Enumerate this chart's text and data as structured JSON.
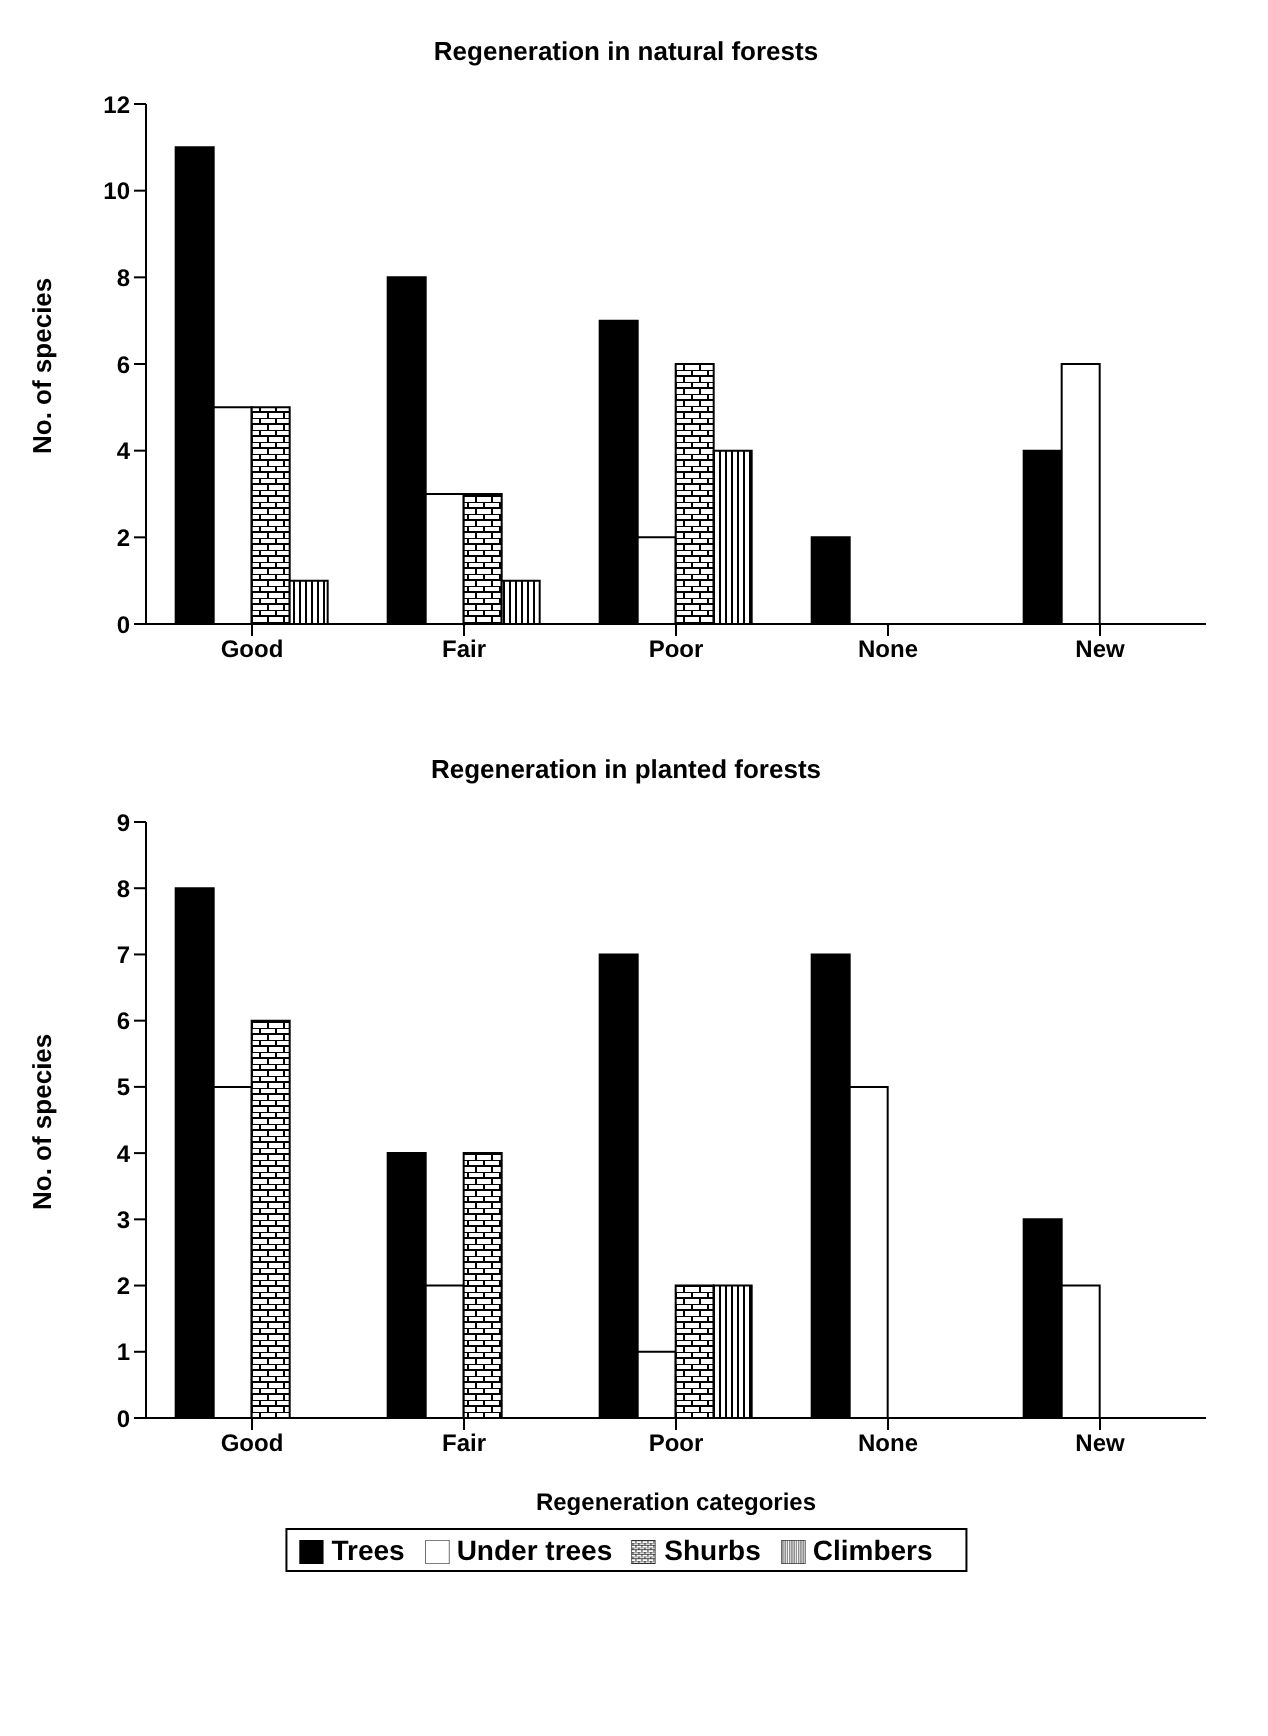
{
  "chart_data": [
    {
      "type": "bar",
      "title": "Regeneration in natural forests",
      "ylabel": "No. of species",
      "categories": [
        "Good",
        "Fair",
        "Poor",
        "None",
        "New"
      ],
      "ylim": [
        0,
        12
      ],
      "yticks": [
        0,
        2,
        4,
        6,
        8,
        10,
        12
      ],
      "grid": false,
      "legend": false,
      "series": [
        {
          "color": "#000000",
          "values": [
            11,
            8,
            7,
            2,
            4
          ]
        },
        {
          "color": "#ffffff",
          "values": [
            5,
            3,
            2,
            0,
            6
          ]
        },
        {
          "color": "#000000",
          "values": [
            5,
            3,
            6,
            0,
            0
          ]
        },
        {
          "color": "#000000",
          "values": [
            1,
            1,
            4,
            0,
            0
          ]
        }
      ]
    },
    {
      "type": "bar",
      "title": "Regeneration in planted forests",
      "xlabel": "Regeneration categories",
      "ylabel": "No. of species",
      "categories": [
        "Good",
        "Fair",
        "Poor",
        "None",
        "New"
      ],
      "ylim": [
        0,
        9
      ],
      "yticks": [
        0,
        1,
        2,
        3,
        4,
        5,
        6,
        7,
        8,
        9
      ],
      "grid": false,
      "legend": "bottom",
      "series": [
        {
          "name": "Trees",
          "color": "#000000",
          "values": [
            8,
            4,
            7,
            7,
            3
          ]
        },
        {
          "name": "Under trees",
          "color": "#ffffff",
          "values": [
            5,
            2,
            1,
            5,
            2
          ]
        },
        {
          "name": "Shurbs",
          "color": "#000000",
          "values": [
            6,
            4,
            2,
            0,
            0
          ]
        },
        {
          "name": "Climbers",
          "color": "#000000",
          "values": [
            0,
            0,
            2,
            0,
            0
          ]
        }
      ]
    }
  ]
}
